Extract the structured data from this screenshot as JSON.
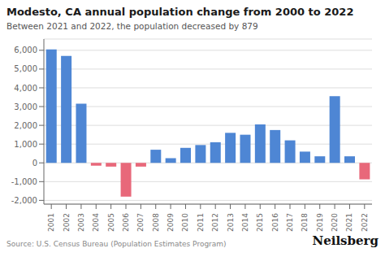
{
  "chart_data": {
    "type": "bar",
    "title": "Modesto, CA annual population change from 2000 to 2022",
    "subtitle": "Between 2021 and 2022, the population decreased by 879",
    "annotations": [
      "Source: U.S. Census Bureau (Population Estimates Program)",
      "Neilsberg"
    ],
    "categories": [
      "2001",
      "2002",
      "2003",
      "2004",
      "2005",
      "2006",
      "2007",
      "2008",
      "2009",
      "2010",
      "2011",
      "2012",
      "2013",
      "2014",
      "2015",
      "2016",
      "2017",
      "2018",
      "2019",
      "2020",
      "2021",
      "2022"
    ],
    "values": [
      6050,
      5700,
      3150,
      -150,
      -200,
      -1800,
      -200,
      700,
      250,
      800,
      950,
      1100,
      1600,
      1500,
      2050,
      1750,
      1200,
      600,
      350,
      3550,
      350,
      -879
    ],
    "colors": [
      "#4E86D4",
      "#4E86D4",
      "#4E86D4",
      "#E8687A",
      "#E8687A",
      "#E8687A",
      "#E8687A",
      "#4E86D4",
      "#4E86D4",
      "#4E86D4",
      "#4E86D4",
      "#4E86D4",
      "#4E86D4",
      "#4E86D4",
      "#4E86D4",
      "#4E86D4",
      "#4E86D4",
      "#4E86D4",
      "#4E86D4",
      "#4E86D4",
      "#4E86D4",
      "#E8687A"
    ],
    "ylim": [
      -2200,
      6600
    ],
    "yticks": [
      {
        "value": -2000,
        "label": "-2,000"
      },
      {
        "value": -1000,
        "label": "-1,000"
      },
      0,
      {
        "value": 1000,
        "label": "1,000"
      },
      {
        "value": 2000,
        "label": "2,000"
      },
      {
        "value": 3000,
        "label": "3,000"
      },
      {
        "value": 4000,
        "label": "4,000"
      },
      {
        "value": 5000,
        "label": "5,000"
      },
      {
        "value": 6000,
        "label": "6,000"
      }
    ],
    "grid": true
  }
}
